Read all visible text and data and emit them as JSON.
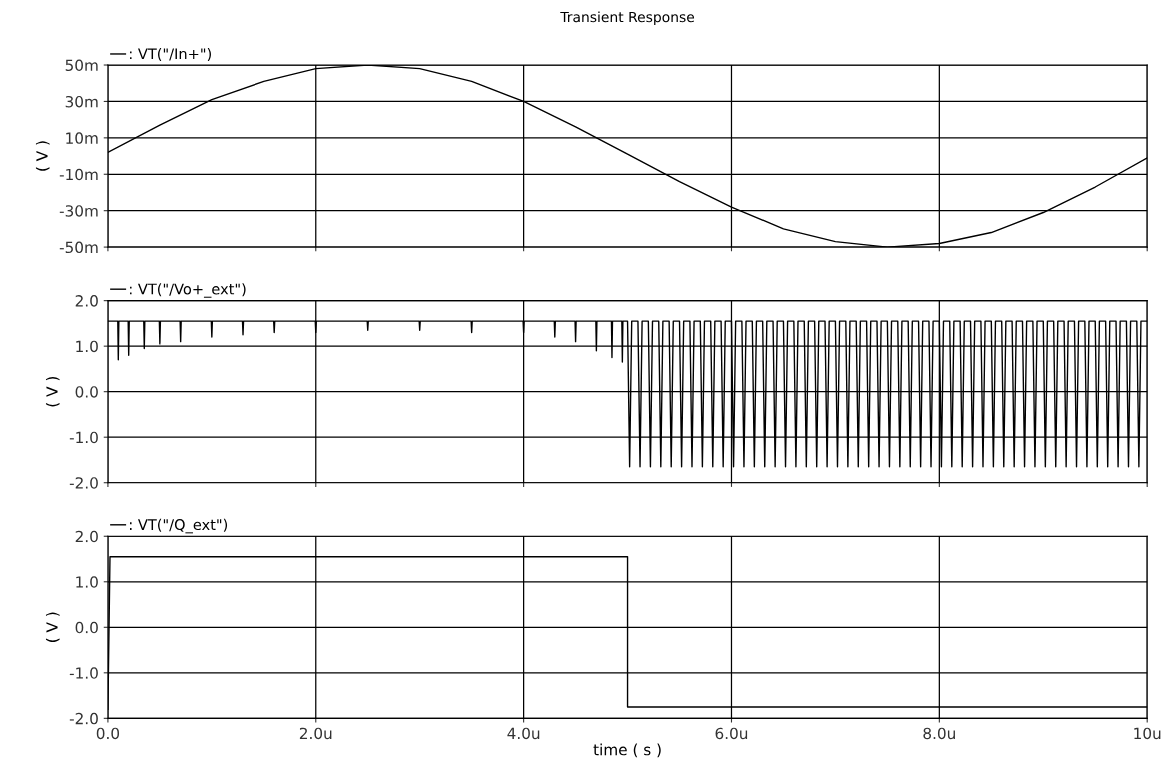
{
  "chart_data": [
    {
      "type": "line",
      "title": "Transient Response",
      "ylabel": "( V )",
      "grid": true,
      "legend": "top left",
      "tick_labels": "y",
      "xlim": [
        0,
        10
      ],
      "xticks": [
        {
          "value": 0,
          "label": null
        },
        {
          "value": 2,
          "label": null
        },
        {
          "value": 4,
          "label": null
        },
        {
          "value": 6,
          "label": null
        },
        {
          "value": 8,
          "label": null
        },
        {
          "value": 10,
          "label": null
        }
      ],
      "ylim": [
        -50,
        50
      ],
      "yticks": [
        {
          "value": 50,
          "label": "50m"
        },
        {
          "value": 30,
          "label": "30m"
        },
        {
          "value": 10,
          "label": "10m"
        },
        {
          "value": -10,
          "label": "-10m"
        },
        {
          "value": -30,
          "label": "-30m"
        },
        {
          "value": -50,
          "label": "-50m"
        }
      ],
      "series": [
        {
          "name": ": VT(\"/In+\")",
          "color": "#000000",
          "x": [
            0,
            0.5,
            1,
            1.5,
            2,
            2.5,
            3,
            3.5,
            4,
            4.5,
            5,
            5.5,
            6,
            6.5,
            7,
            7.5,
            8,
            8.5,
            9,
            9.5,
            10
          ],
          "values": [
            2,
            17,
            31,
            41,
            48,
            50,
            48,
            41,
            30,
            16,
            1,
            -14,
            -28,
            -40,
            -47,
            -50,
            -48,
            -42,
            -31,
            -17,
            -1
          ]
        }
      ]
    },
    {
      "type": "line",
      "ylabel": "( V )",
      "grid": true,
      "legend": "top left",
      "tick_labels": "y",
      "xlim": [
        0,
        10
      ],
      "xticks": [
        {
          "value": 0,
          "label": null
        },
        {
          "value": 2,
          "label": null
        },
        {
          "value": 4,
          "label": null
        },
        {
          "value": 6,
          "label": null
        },
        {
          "value": 8,
          "label": null
        },
        {
          "value": 10,
          "label": null
        }
      ],
      "ylim": [
        -2.0,
        2.0
      ],
      "yticks": [
        {
          "value": 2,
          "label": "2.0"
        },
        {
          "value": 1,
          "label": "1.0"
        },
        {
          "value": 0,
          "label": "0.0"
        },
        {
          "value": -1,
          "label": "-1.0"
        },
        {
          "value": -2,
          "label": "-2.0"
        }
      ],
      "series": [
        {
          "name": ": VT(\"/Vo+_ext\")",
          "color": "#000000",
          "x": [
            0,
            0.095,
            0.1,
            0.105,
            0.195,
            0.2,
            0.205,
            0.345,
            0.35,
            0.355,
            0.495,
            0.5,
            0.505,
            0.695,
            0.7,
            0.705,
            0.995,
            1,
            1.005,
            1.295,
            1.3,
            1.305,
            1.595,
            1.6,
            1.605,
            1.995,
            2,
            2.005,
            2.495,
            2.5,
            2.505,
            2.995,
            3,
            3.005,
            3.495,
            3.5,
            3.505,
            3.995,
            4,
            4.005,
            4.295,
            4.3,
            4.305,
            4.495,
            4.5,
            4.505,
            4.695,
            4.7,
            4.705,
            4.845,
            4.85,
            4.855,
            4.945,
            4.95,
            4.955,
            5.0,
            5.02,
            5.04,
            5.1,
            5.12,
            5.14,
            5.2,
            5.22,
            5.24,
            5.3,
            5.32,
            5.34,
            5.4,
            5.42,
            5.44,
            5.5,
            5.52,
            5.54,
            5.6,
            5.62,
            5.64,
            5.7,
            5.72,
            5.74,
            5.8,
            5.82,
            5.84,
            5.9,
            5.92,
            5.94,
            6.0,
            6.02,
            6.04,
            6.1,
            6.12,
            6.14,
            6.2,
            6.22,
            6.24,
            6.3,
            6.32,
            6.34,
            6.4,
            6.42,
            6.44,
            6.5,
            6.52,
            6.54,
            6.6,
            6.62,
            6.64,
            6.7,
            6.72,
            6.74,
            6.8,
            6.82,
            6.84,
            6.9,
            6.92,
            6.94,
            7.0,
            7.02,
            7.04,
            7.1,
            7.12,
            7.14,
            7.2,
            7.22,
            7.24,
            7.3,
            7.32,
            7.34,
            7.4,
            7.42,
            7.44,
            7.5,
            7.52,
            7.54,
            7.6,
            7.62,
            7.64,
            7.7,
            7.72,
            7.74,
            7.8,
            7.82,
            7.84,
            7.9,
            7.92,
            7.94,
            8.0,
            8.02,
            8.04,
            8.1,
            8.12,
            8.14,
            8.2,
            8.22,
            8.24,
            8.3,
            8.32,
            8.34,
            8.4,
            8.42,
            8.44,
            8.5,
            8.52,
            8.54,
            8.6,
            8.62,
            8.64,
            8.7,
            8.72,
            8.74,
            8.8,
            8.82,
            8.84,
            8.9,
            8.92,
            8.94,
            9.0,
            9.02,
            9.04,
            9.1,
            9.12,
            9.14,
            9.2,
            9.22,
            9.24,
            9.3,
            9.32,
            9.34,
            9.4,
            9.42,
            9.44,
            9.5,
            9.52,
            9.54,
            9.6,
            9.62,
            9.64,
            9.7,
            9.72,
            9.74,
            9.8,
            9.82,
            9.84,
            9.9,
            9.92,
            9.94,
            10
          ],
          "values": [
            1.55,
            1.55,
            0.7,
            1.55,
            1.55,
            0.8,
            1.55,
            1.55,
            0.95,
            1.55,
            1.55,
            1.05,
            1.55,
            1.55,
            1.1,
            1.55,
            1.55,
            1.2,
            1.55,
            1.55,
            1.25,
            1.55,
            1.55,
            1.3,
            1.55,
            1.55,
            1.3,
            1.55,
            1.55,
            1.35,
            1.55,
            1.55,
            1.35,
            1.55,
            1.55,
            1.3,
            1.55,
            1.55,
            1.3,
            1.55,
            1.55,
            1.2,
            1.55,
            1.55,
            1.1,
            1.55,
            1.55,
            0.9,
            1.55,
            1.55,
            0.75,
            1.55,
            1.55,
            0.65,
            1.55,
            1.55,
            -1.65,
            1.55,
            1.55,
            -1.65,
            1.55,
            1.55,
            -1.65,
            1.55,
            1.55,
            -1.65,
            1.55,
            1.55,
            -1.65,
            1.55,
            1.55,
            -1.65,
            1.55,
            1.55,
            -1.65,
            1.55,
            1.55,
            -1.65,
            1.55,
            1.55,
            -1.65,
            1.55,
            1.55,
            -1.65,
            1.55,
            1.55,
            -1.65,
            1.55,
            1.55,
            -1.65,
            1.55,
            1.55,
            -1.65,
            1.55,
            1.55,
            -1.65,
            1.55,
            1.55,
            -1.65,
            1.55,
            1.55,
            -1.65,
            1.55,
            1.55,
            -1.65,
            1.55,
            1.55,
            -1.65,
            1.55,
            1.55,
            -1.65,
            1.55,
            1.55,
            -1.65,
            1.55,
            1.55,
            -1.65,
            1.55,
            1.55,
            -1.65,
            1.55,
            1.55,
            -1.65,
            1.55,
            1.55,
            -1.65,
            1.55,
            1.55,
            -1.65,
            1.55,
            1.55,
            -1.65,
            1.55,
            1.55,
            -1.65,
            1.55,
            1.55,
            -1.65,
            1.55,
            1.55,
            -1.65,
            1.55,
            1.55,
            -1.65,
            1.55,
            1.55,
            -1.65,
            1.55,
            1.55,
            -1.65,
            1.55,
            1.55,
            -1.65,
            1.55,
            1.55,
            -1.65,
            1.55,
            1.55,
            -1.65,
            1.55,
            1.55,
            -1.65,
            1.55,
            1.55,
            -1.65,
            1.55,
            1.55,
            -1.65,
            1.55,
            1.55,
            -1.65,
            1.55,
            1.55,
            -1.65,
            1.55,
            1.55,
            -1.65,
            1.55,
            1.55,
            -1.65,
            1.55,
            1.55,
            -1.65,
            1.55,
            1.55,
            -1.65,
            1.55,
            1.55,
            -1.65,
            1.55,
            1.55,
            -1.65,
            1.55,
            1.55,
            -1.65,
            1.55,
            1.55,
            -1.65,
            1.55,
            1.55,
            -1.65,
            1.55,
            1.55,
            -1.65,
            1.55,
            1.55
          ]
        }
      ]
    },
    {
      "type": "line",
      "ylabel": "( V )",
      "xlabel": "time ( s )",
      "grid": true,
      "legend": "top left",
      "xlim": [
        0,
        10
      ],
      "xticks": [
        {
          "value": 0,
          "label": "0.0"
        },
        {
          "value": 2,
          "label": "2.0u"
        },
        {
          "value": 4,
          "label": "4.0u"
        },
        {
          "value": 6,
          "label": "6.0u"
        },
        {
          "value": 8,
          "label": "8.0u"
        },
        {
          "value": 10,
          "label": "10u"
        }
      ],
      "ylim": [
        -2.0,
        2.0
      ],
      "yticks": [
        {
          "value": 2,
          "label": "2.0"
        },
        {
          "value": 1,
          "label": "1.0"
        },
        {
          "value": 0,
          "label": "0.0"
        },
        {
          "value": -1,
          "label": "-1.0"
        },
        {
          "value": -2,
          "label": "-2.0"
        }
      ],
      "series": [
        {
          "name": ": VT(\"/Q_ext\")",
          "color": "#000000",
          "x": [
            0,
            0.02,
            5.0,
            5.0,
            10
          ],
          "values": [
            -1.8,
            1.55,
            1.55,
            -1.75,
            -1.75
          ]
        }
      ]
    }
  ]
}
